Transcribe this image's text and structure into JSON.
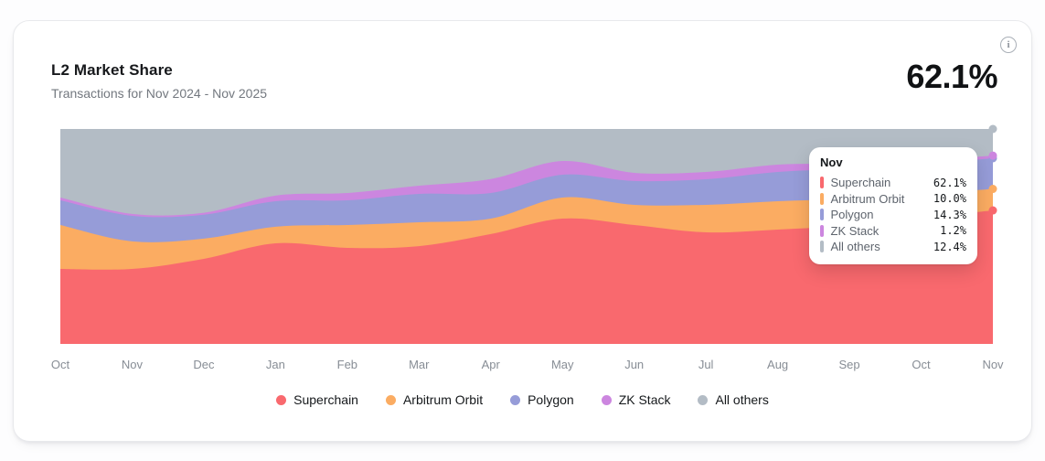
{
  "card": {
    "title": "L2 Market Share",
    "subtitle": "Transactions for Nov 2024 - Nov 2025",
    "big_value": "62.1%",
    "info_icon_glyph": "i"
  },
  "chart_data": {
    "type": "area",
    "stacked": true,
    "unit": "percent",
    "ylim": [
      0,
      100
    ],
    "grid": false,
    "legend_position": "bottom",
    "x": [
      "Oct",
      "Nov",
      "Dec",
      "Jan",
      "Feb",
      "Mar",
      "Apr",
      "May",
      "Jun",
      "Jul",
      "Aug",
      "Sep",
      "Oct",
      "Nov"
    ],
    "series": [
      {
        "name": "Superchain",
        "color": "#F9696E",
        "values": [
          34.9,
          34.9,
          39.6,
          46.8,
          44.7,
          45.5,
          51.1,
          58.3,
          55.3,
          51.9,
          53.2,
          55.0,
          58.5,
          62.1
        ]
      },
      {
        "name": "Arbitrum Orbit",
        "color": "#FBAC62",
        "values": [
          20.4,
          12.8,
          9.4,
          7.7,
          10.6,
          11.1,
          7.2,
          9.8,
          9.4,
          12.8,
          13.2,
          12.5,
          11.0,
          10.0
        ]
      },
      {
        "name": "Polygon",
        "color": "#969CD8",
        "values": [
          11.5,
          11.9,
          11.1,
          11.9,
          11.5,
          13.2,
          11.9,
          10.6,
          11.1,
          11.9,
          13.6,
          14.0,
          14.0,
          14.3
        ]
      },
      {
        "name": "ZK Stack",
        "color": "#CC86DF",
        "values": [
          1.3,
          0.9,
          0.9,
          2.6,
          3.4,
          3.8,
          6.5,
          6.4,
          3.8,
          3.4,
          3.4,
          2.5,
          1.8,
          1.2
        ]
      },
      {
        "name": "All others",
        "color": "#B3BCC5",
        "values": [
          31.9,
          39.5,
          39.0,
          31.0,
          29.8,
          26.4,
          23.3,
          14.9,
          20.4,
          20.0,
          16.6,
          16.0,
          14.7,
          12.4
        ]
      }
    ]
  },
  "legend": {
    "items": [
      {
        "label": "Superchain",
        "color": "#F9696E"
      },
      {
        "label": "Arbitrum Orbit",
        "color": "#FBAC62"
      },
      {
        "label": "Polygon",
        "color": "#969CD8"
      },
      {
        "label": "ZK Stack",
        "color": "#CC86DF"
      },
      {
        "label": "All others",
        "color": "#B3BCC5"
      }
    ]
  },
  "tooltip": {
    "header": "Nov",
    "rows": [
      {
        "label": "Superchain",
        "value": "62.1%",
        "color": "#F9696E"
      },
      {
        "label": "Arbitrum Orbit",
        "value": "10.0%",
        "color": "#FBAC62"
      },
      {
        "label": "Polygon",
        "value": "14.3%",
        "color": "#969CD8"
      },
      {
        "label": "ZK Stack",
        "value": "1.2%",
        "color": "#CC86DF"
      },
      {
        "label": "All others",
        "value": "12.4%",
        "color": "#B3BCC5"
      }
    ]
  }
}
